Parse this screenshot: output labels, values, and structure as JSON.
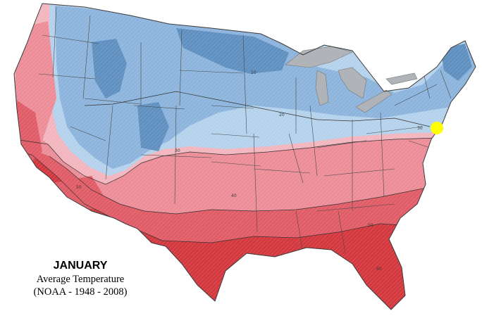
{
  "caption": {
    "month": "JANUARY",
    "title": "Average Temperature",
    "source": "(NOAA - 1948 - 2008)"
  },
  "contour_labels": [
    "10",
    "20",
    "30",
    "30",
    "40",
    "50",
    "50",
    "60"
  ],
  "colors": {
    "coldest": "#5f90c0",
    "cold": "#8cb4dc",
    "cool": "#b5d2ec",
    "mild": "#f3b6be",
    "warm": "#ec8d98",
    "hot": "#e05c67",
    "hottest": "#d4383f",
    "lakes": "#b0b4b8",
    "marker": "#ffff00"
  }
}
